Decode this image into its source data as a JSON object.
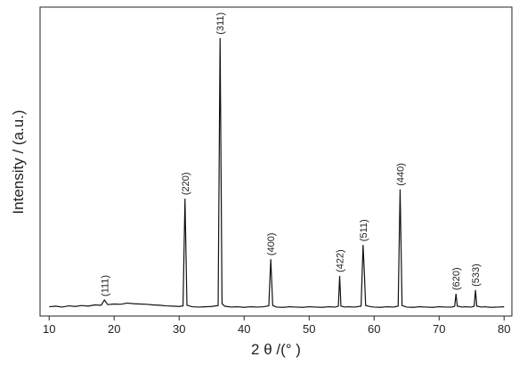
{
  "chart_data": {
    "type": "line",
    "x_label": "2 θ /(°  )",
    "y_label": "Intensity / (a.u.)",
    "xlim": [
      8.6,
      81.2
    ],
    "ylim": [
      0,
      100
    ],
    "xticks": [
      10,
      20,
      30,
      40,
      50,
      60,
      70,
      80
    ],
    "color": "#111111",
    "x": [
      10,
      11,
      12,
      13,
      14,
      15,
      16,
      17,
      18,
      18.5,
      19,
      20,
      21,
      22,
      23,
      24,
      25,
      26,
      27,
      28,
      29,
      30,
      30.6,
      30.9,
      31.2,
      32,
      33,
      34,
      35,
      36,
      36.3,
      36.6,
      37,
      38,
      39,
      40,
      41,
      42,
      43,
      43.8,
      44.1,
      44.4,
      45,
      46,
      47,
      48,
      49,
      50,
      51,
      52,
      53,
      54,
      54.5,
      54.7,
      54.9,
      55.5,
      56,
      57,
      58,
      58.3,
      58.5,
      58.7,
      59.5,
      60,
      61,
      62,
      63,
      63.7,
      64.0,
      64.3,
      65,
      66,
      67,
      68,
      69,
      70,
      71,
      72,
      72.4,
      72.6,
      72.8,
      73.5,
      74,
      75,
      75.4,
      75.6,
      75.8,
      76.5,
      77,
      78,
      79,
      80
    ],
    "values": [
      3.0,
      3.2,
      2.9,
      3.3,
      3.1,
      3.4,
      3.2,
      3.6,
      3.5,
      5.2,
      3.7,
      3.9,
      3.8,
      4.2,
      4.0,
      3.9,
      3.8,
      3.6,
      3.5,
      3.3,
      3.2,
      3.1,
      3.3,
      38,
      3.5,
      3.0,
      2.9,
      3.0,
      3.1,
      3.4,
      90,
      4,
      3.2,
      2.9,
      3.0,
      2.8,
      3.0,
      2.9,
      3.0,
      3.3,
      18.4,
      3.4,
      2.9,
      2.8,
      3.0,
      2.9,
      2.8,
      3.0,
      2.9,
      2.8,
      3.0,
      2.9,
      3.2,
      13,
      3.2,
      2.9,
      3.0,
      2.9,
      3.2,
      23,
      14,
      3.4,
      3.0,
      2.9,
      2.8,
      3.0,
      2.9,
      3.2,
      41,
      3.4,
      2.9,
      2.8,
      3.0,
      2.9,
      2.8,
      3.0,
      2.9,
      2.9,
      3.2,
      7.2,
      3.2,
      2.9,
      3.0,
      2.9,
      3.2,
      8.4,
      3.2,
      2.9,
      3.0,
      2.8,
      2.9,
      3.0
    ],
    "annotations": [
      {
        "text": "(111)",
        "x": 18.5,
        "y": 5.2
      },
      {
        "text": "(220)",
        "x": 30.9,
        "y": 38
      },
      {
        "text": "(311)",
        "x": 36.3,
        "y": 90
      },
      {
        "text": "(400)",
        "x": 44.1,
        "y": 18.4
      },
      {
        "text": "(422)",
        "x": 54.7,
        "y": 13
      },
      {
        "text": "(511)",
        "x": 58.3,
        "y": 23
      },
      {
        "text": "(440)",
        "x": 64.0,
        "y": 41
      },
      {
        "text": "(620)",
        "x": 72.6,
        "y": 7.2
      },
      {
        "text": "(533)",
        "x": 75.6,
        "y": 8.4
      }
    ]
  }
}
